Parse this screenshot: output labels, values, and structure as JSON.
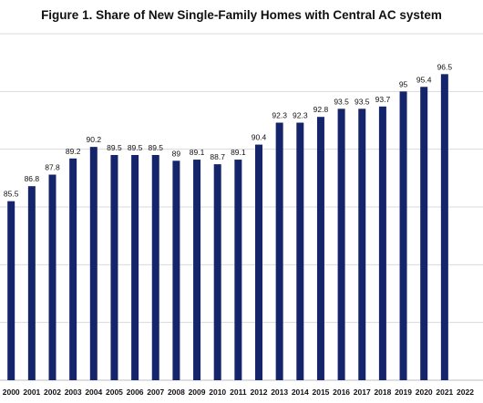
{
  "chart_data": {
    "type": "bar",
    "title": "Figure 1. Share of New Single-Family Homes with Central AC system",
    "categories": [
      "2000",
      "2001",
      "2002",
      "2003",
      "2004",
      "2005",
      "2006",
      "2007",
      "2008",
      "2009",
      "2010",
      "2011",
      "2012",
      "2013",
      "2014",
      "2015",
      "2016",
      "2017",
      "2018",
      "2019",
      "2020",
      "2021",
      "2022"
    ],
    "values": [
      85.5,
      86.8,
      87.8,
      89.2,
      90.2,
      89.5,
      89.5,
      89.5,
      89,
      89.1,
      88.7,
      89.1,
      90.4,
      92.3,
      92.3,
      92.8,
      93.5,
      93.5,
      93.7,
      95,
      95.4,
      96.5,
      null
    ],
    "value_labels": [
      "85.5",
      "86.8",
      "87.8",
      "89.2",
      "90.2",
      "89.5",
      "89.5",
      "89.5",
      "89",
      "89.1",
      "88.7",
      "89.1",
      "90.4",
      "92.3",
      "92.3",
      "92.8",
      "93.5",
      "93.5",
      "93.7",
      "95",
      "95.4",
      "96.5",
      ""
    ],
    "ylim": [
      70,
      100
    ],
    "grid": true,
    "bar_color": "#14256b",
    "grid_color": "#d9d9d9",
    "xlabel": "",
    "ylabel": ""
  }
}
